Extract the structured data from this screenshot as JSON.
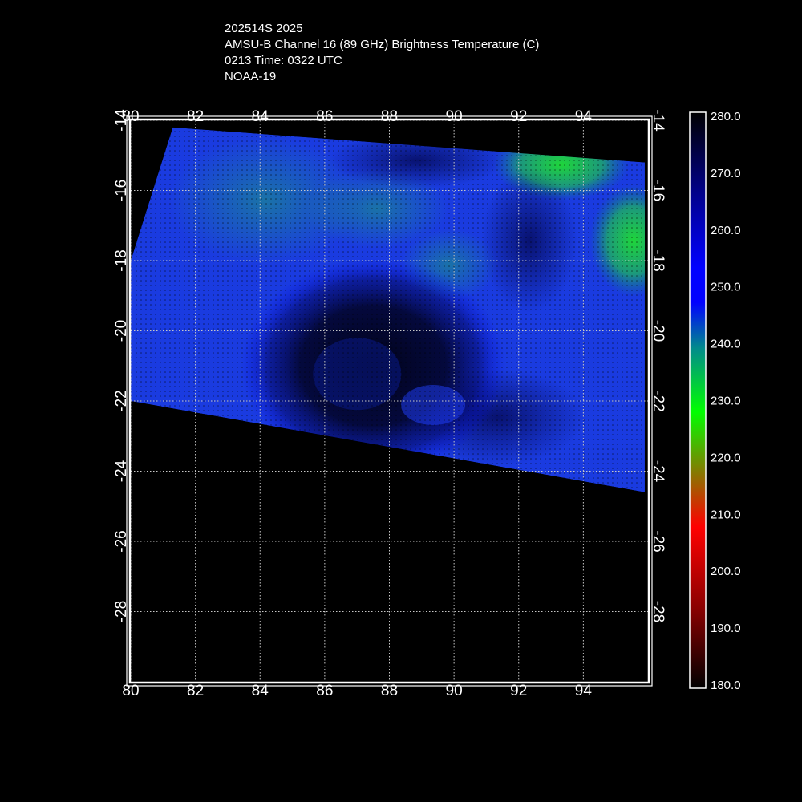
{
  "header": {
    "storm": "202514S 2025",
    "product": "AMSU-B Channel 16 (89 GHz) Brightness Temperature (C)",
    "time": "0213 Time: 0322 UTC",
    "satellite": "NOAA-19"
  },
  "map": {
    "lon_range": [
      80,
      96
    ],
    "lat_range": [
      -14,
      -30
    ],
    "lon_ticks": [
      "80",
      "82",
      "84",
      "86",
      "88",
      "90",
      "92",
      "94"
    ],
    "lat_ticks": [
      "-14",
      "-16",
      "-18",
      "-20",
      "-22",
      "-24",
      "-26",
      "-28"
    ],
    "grid": true,
    "grid_color": "#c8c8c8",
    "swath_corners_lonlat": [
      [
        81.3,
        -14.2
      ],
      [
        95.9,
        -15.2
      ],
      [
        95.9,
        -24.6
      ],
      [
        80.0,
        -22.0
      ],
      [
        80.0,
        -18.0
      ]
    ],
    "eye_center_lonlat": [
      87.5,
      -21.0
    ]
  },
  "colorbar": {
    "labels": [
      "280.0",
      "270.0",
      "260.0",
      "250.0",
      "240.0",
      "230.0",
      "220.0",
      "210.0",
      "200.0",
      "190.0",
      "180.0"
    ],
    "colors_top_to_bottom": [
      "#000000",
      "#00008b",
      "#0000ff",
      "#0000ff",
      "#008b8b",
      "#00ff00",
      "#ff0000",
      "#8b0000",
      "#000000"
    ]
  },
  "colors": {
    "background": "#000000",
    "swath_base": "#1a3be0",
    "warm_green": "#1ed63a",
    "cold_dark": "#000033",
    "text": "#ffffff"
  }
}
